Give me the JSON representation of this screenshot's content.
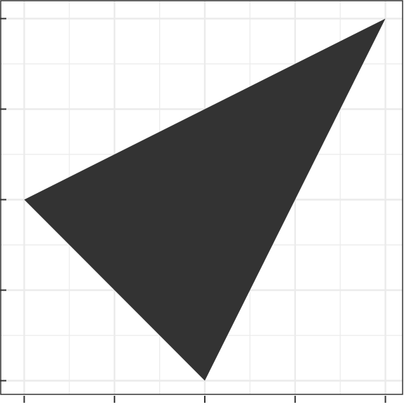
{
  "chart_data": {
    "type": "polygon",
    "title": "",
    "xlabel": "",
    "ylabel": "",
    "xlim": [
      -0.05,
      1.05
    ],
    "ylim": [
      -0.05,
      1.05
    ],
    "x_major_ticks": [
      0,
      0.25,
      0.5,
      0.75,
      1
    ],
    "y_major_ticks": [
      0,
      0.25,
      0.5,
      0.75,
      1
    ],
    "x_minor_gridlines": [
      0.125,
      0.375,
      0.625,
      0.875
    ],
    "y_minor_gridlines": [
      0.125,
      0.375,
      0.625,
      0.875
    ],
    "tick_labels_shown": false,
    "grid": true,
    "polygon": {
      "points": [
        {
          "x": 0,
          "y": 0.5
        },
        {
          "x": 1,
          "y": 1
        },
        {
          "x": 0.5,
          "y": 0
        }
      ],
      "fill": "#333333"
    },
    "colors": {
      "background": "#ffffff",
      "grid": "#ebebeb",
      "border": "#333333",
      "ticks": "#333333"
    }
  }
}
